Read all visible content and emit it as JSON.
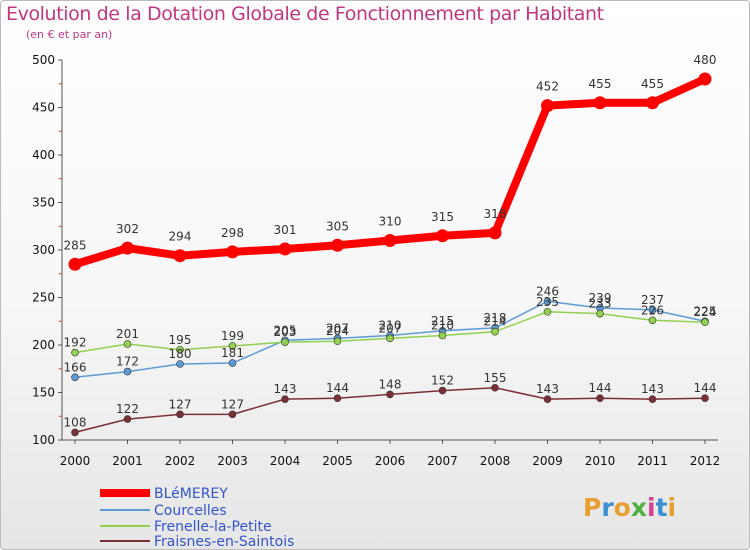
{
  "header": {
    "title": "Evolution de la Dotation Globale de Fonctionnement par Habitant",
    "subtitle": "(en € et par an)"
  },
  "logo": {
    "text": "Proxiti"
  },
  "chart_data": {
    "type": "line",
    "title": "Evolution de la Dotation Globale de Fonctionnement par Habitant",
    "subtitle": "(en € et par an)",
    "xlabel": "",
    "ylabel": "",
    "ylim": [
      100,
      500
    ],
    "yticks": [
      100,
      150,
      200,
      250,
      300,
      350,
      400,
      450,
      500
    ],
    "grid": false,
    "legend_position": "bottom-left",
    "x": [
      "2000",
      "2001",
      "2002",
      "2003",
      "2004",
      "2005",
      "2006",
      "2007",
      "2008",
      "2009",
      "2010",
      "2011",
      "2012"
    ],
    "series": [
      {
        "name": "BLéMEREY",
        "color": "#ff0000",
        "values": [
          285,
          302,
          294,
          298,
          301,
          305,
          310,
          315,
          318,
          452,
          455,
          455,
          480
        ],
        "labels": [
          "285",
          "302",
          "294",
          "298",
          "301",
          "305",
          "310",
          "315",
          "318",
          "452",
          "455",
          "455",
          "480"
        ]
      },
      {
        "name": "Courcelles",
        "color": "#5b9bd5",
        "values": [
          166,
          172,
          180,
          181,
          205,
          207,
          210,
          215,
          218,
          246,
          239,
          237,
          225
        ],
        "labels": [
          "166",
          "172",
          "180",
          "181",
          "205",
          "207",
          "210",
          "215",
          "218",
          "246",
          "239",
          "237",
          "225"
        ]
      },
      {
        "name": "Frenelle-la-Petite",
        "color": "#92d050",
        "values": [
          192,
          201,
          195,
          199,
          203,
          204,
          207,
          210,
          214,
          235,
          233,
          226,
          224
        ],
        "labels": [
          "192",
          "201",
          "195",
          "199",
          "203",
          "204",
          "207",
          "210",
          "214",
          "235",
          "233",
          "226",
          "224"
        ]
      },
      {
        "name": "Fraisnes-en-Saintois",
        "color": "#7a3035",
        "values": [
          108,
          122,
          127,
          127,
          143,
          144,
          148,
          152,
          155,
          143,
          144,
          143,
          144
        ],
        "labels": [
          "108",
          "122",
          "127",
          "127",
          "143",
          "144",
          "148",
          "152",
          "155",
          "143",
          "144",
          "143",
          "144"
        ]
      }
    ]
  }
}
